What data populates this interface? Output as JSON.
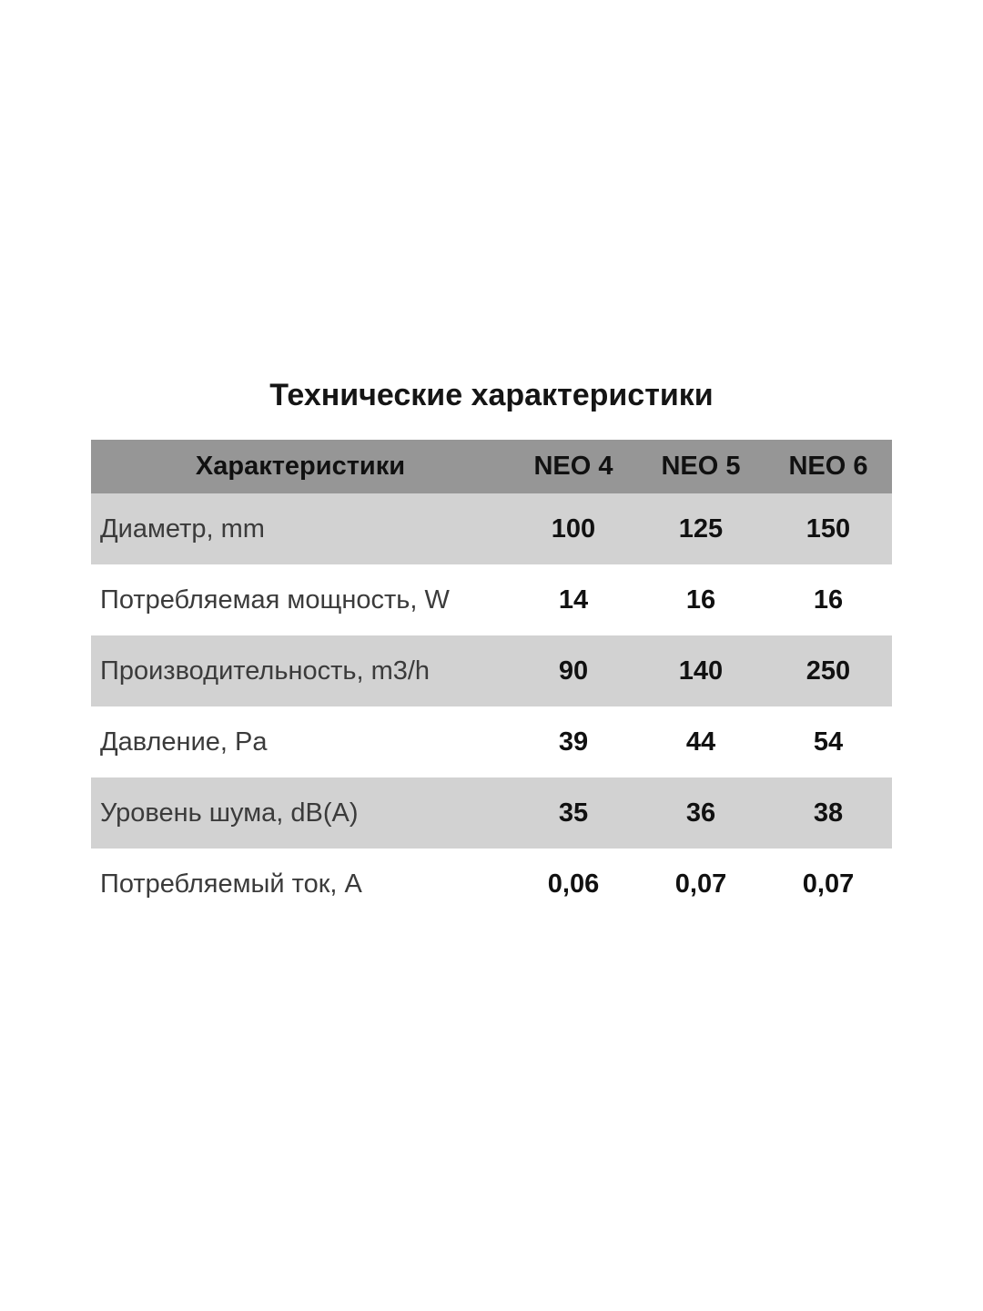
{
  "page": {
    "title": "Технические характеристики",
    "background_color": "#ffffff"
  },
  "table": {
    "colors": {
      "header_bg": "#969696",
      "stripe_bg": "#d2d2d2",
      "plain_bg": "#ffffff",
      "label_text": "#3b3b3b",
      "value_text": "#111111"
    },
    "header": {
      "label": "Характеристики",
      "columns": [
        "NEO 4",
        "NEO 5",
        "NEO 6"
      ]
    },
    "rows": [
      {
        "label": "Диаметр, mm",
        "values": [
          "100",
          "125",
          "150"
        ]
      },
      {
        "label": "Потребляемая мощность, W",
        "values": [
          "14",
          "16",
          "16"
        ]
      },
      {
        "label": "Производительность, m3/h",
        "values": [
          "90",
          "140",
          "250"
        ]
      },
      {
        "label": "Давление, Pa",
        "values": [
          "39",
          "44",
          "54"
        ]
      },
      {
        "label": "Уровень шума, dB(A)",
        "values": [
          "35",
          "36",
          "38"
        ]
      },
      {
        "label": "Потребляемый ток, A",
        "values": [
          "0,06",
          "0,07",
          "0,07"
        ]
      }
    ]
  }
}
